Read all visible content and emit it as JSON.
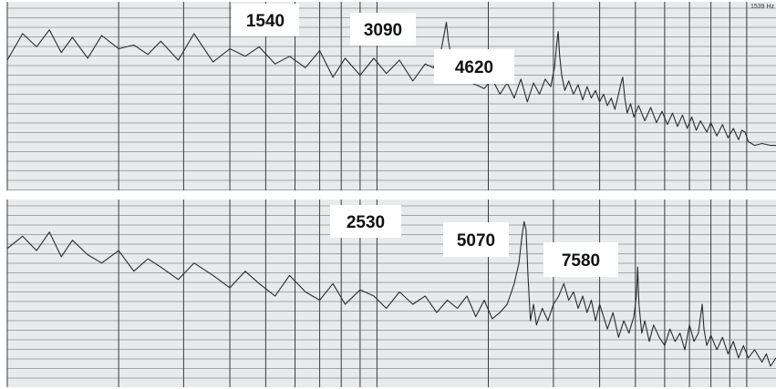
{
  "chart_data": [
    {
      "type": "line",
      "title": "",
      "xlabel": "",
      "ylabel": "",
      "x_scale": "log",
      "grid": true,
      "corner_text": "1539 Hz",
      "annotations": [
        {
          "text": "1540",
          "x": 1540
        },
        {
          "text": "3090",
          "x": 3090
        },
        {
          "text": "4620",
          "x": 4620
        }
      ],
      "series": [
        {
          "x": [
            100,
            110,
            120,
            130,
            140,
            150,
            165,
            180,
            200,
            220,
            240,
            260,
            290,
            320,
            360,
            400,
            440,
            480,
            530,
            580,
            640,
            700,
            760,
            820,
            900,
            980,
            1060,
            1150,
            1250,
            1350,
            1420,
            1480,
            1520,
            1540,
            1560,
            1600,
            1650,
            1750,
            1850,
            1950,
            2050,
            2150,
            2250,
            2350,
            2450,
            2550,
            2650,
            2750,
            2850,
            2950,
            3020,
            3060,
            3090,
            3120,
            3160,
            3220,
            3300,
            3400,
            3500,
            3600,
            3700,
            3800,
            3900,
            4000,
            4100,
            4200,
            4300,
            4400,
            4500,
            4560,
            4620,
            4680,
            4750,
            4850,
            4950,
            5100,
            5300,
            5500,
            5700,
            5900,
            6100,
            6300,
            6500,
            6700,
            6900,
            7100,
            7300,
            7500,
            7800,
            8000,
            8300,
            8600,
            8900,
            9200,
            9500,
            9700,
            9900,
            10100,
            10500,
            11000,
            11600,
            12000
          ],
          "y": [
            -20,
            -6,
            -13,
            -4,
            -16,
            -8,
            -19,
            -7,
            -14,
            -12,
            -17,
            -10,
            -20,
            -6,
            -21,
            -14,
            -18,
            -13,
            -22,
            -18,
            -24,
            -15,
            -29,
            -19,
            -28,
            -19,
            -27,
            -20,
            -31,
            -22,
            -24,
            -18,
            -6,
            0,
            -10,
            -22,
            -29,
            -31,
            -33,
            -35,
            -30,
            -38,
            -32,
            -40,
            -30,
            -42,
            -32,
            -38,
            -30,
            -34,
            -24,
            -12,
            -5,
            -18,
            -28,
            -36,
            -31,
            -38,
            -33,
            -41,
            -34,
            -40,
            -36,
            -42,
            -38,
            -44,
            -40,
            -46,
            -38,
            -33,
            -29,
            -40,
            -48,
            -43,
            -50,
            -44,
            -52,
            -45,
            -53,
            -47,
            -54,
            -48,
            -55,
            -49,
            -56,
            -50,
            -57,
            -52,
            -58,
            -53,
            -60,
            -54,
            -61,
            -56,
            -62,
            -57,
            -58,
            -63,
            -65,
            -64,
            -65,
            -65
          ]
        }
      ]
    },
    {
      "type": "line",
      "title": "",
      "xlabel": "",
      "ylabel": "",
      "x_scale": "log",
      "grid": true,
      "annotations": [
        {
          "text": "2530",
          "x": 2530
        },
        {
          "text": "5070",
          "x": 5070
        },
        {
          "text": "7580",
          "x": 7580
        }
      ],
      "series": [
        {
          "x": [
            100,
            110,
            120,
            130,
            140,
            150,
            165,
            180,
            200,
            220,
            240,
            260,
            290,
            320,
            360,
            400,
            440,
            480,
            530,
            580,
            640,
            700,
            760,
            820,
            900,
            980,
            1060,
            1150,
            1250,
            1350,
            1450,
            1550,
            1650,
            1750,
            1850,
            1950,
            2050,
            2150,
            2250,
            2350,
            2420,
            2470,
            2500,
            2530,
            2560,
            2600,
            2650,
            2700,
            2800,
            2900,
            3000,
            3100,
            3200,
            3300,
            3400,
            3500,
            3600,
            3700,
            3800,
            3900,
            4000,
            4100,
            4200,
            4350,
            4500,
            4650,
            4800,
            4950,
            5030,
            5070,
            5110,
            5200,
            5300,
            5450,
            5600,
            5800,
            6000,
            6200,
            6400,
            6600,
            6800,
            7000,
            7200,
            7400,
            7500,
            7580,
            7660,
            7800,
            8000,
            8300,
            8600,
            8900,
            9200,
            9500,
            9800,
            10100,
            10500,
            11000,
            11300,
            11600,
            12000
          ],
          "y": [
            -13,
            -7,
            -14,
            -5,
            -17,
            -9,
            -16,
            -20,
            -14,
            -24,
            -18,
            -22,
            -28,
            -20,
            -26,
            -32,
            -24,
            -30,
            -36,
            -26,
            -34,
            -38,
            -30,
            -40,
            -33,
            -36,
            -42,
            -34,
            -40,
            -36,
            -44,
            -38,
            -42,
            -36,
            -46,
            -38,
            -47,
            -44,
            -40,
            -30,
            -20,
            -6,
            0,
            -4,
            -26,
            -48,
            -40,
            -50,
            -42,
            -48,
            -40,
            -36,
            -30,
            -38,
            -34,
            -42,
            -36,
            -44,
            -38,
            -48,
            -40,
            -46,
            -52,
            -44,
            -56,
            -48,
            -54,
            -46,
            -36,
            -22,
            -40,
            -54,
            -48,
            -58,
            -50,
            -56,
            -60,
            -52,
            -58,
            -54,
            -62,
            -50,
            -58,
            -54,
            -46,
            -40,
            -52,
            -60,
            -55,
            -62,
            -56,
            -64,
            -58,
            -66,
            -60,
            -66,
            -62,
            -68,
            -64,
            -70,
            -66
          ]
        }
      ]
    }
  ]
}
